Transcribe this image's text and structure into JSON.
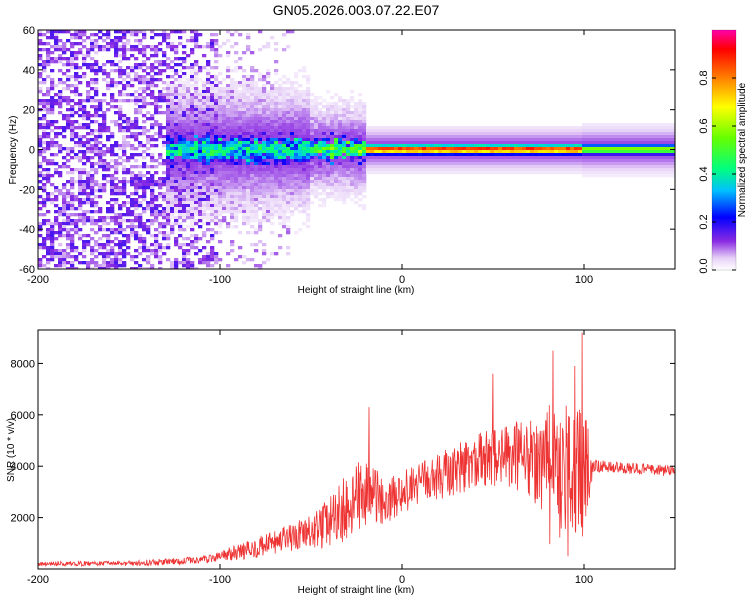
{
  "title": "GN05.2026.003.07.22.E07",
  "chart_data": [
    {
      "type": "heatmap",
      "name": "spectrogram",
      "xlabel": "Height of straight line (km)",
      "ylabel": "Frequency (Hz)",
      "xlim": [
        -200,
        150
      ],
      "ylim": [
        -60,
        60
      ],
      "xticks": [
        -200,
        -100,
        0,
        100
      ],
      "yticks": [
        -60,
        -40,
        -20,
        0,
        20,
        40,
        60
      ],
      "colorbar": {
        "label": "Normalized spectral amplitude",
        "range": [
          0,
          1
        ],
        "ticks": [
          0.0,
          0.2,
          0.4,
          0.6,
          0.8
        ],
        "tick_labels": [
          "0.0",
          "0.2",
          "0.4",
          "0.6",
          "0.8"
        ]
      },
      "description_of_signal": {
        "noise_region_x": [
          -200,
          -100
        ],
        "signal_band_center_hz": 0,
        "signal_start_x": -130,
        "strong_core_start_x": -10
      }
    },
    {
      "type": "line",
      "name": "snr",
      "xlabel": "Height of straight line (km)",
      "ylabel": "SNR (10 * v/v)",
      "xlim": [
        -200,
        150
      ],
      "ylim": [
        0,
        9300
      ],
      "xticks": [
        -200,
        -100,
        0,
        100
      ],
      "yticks": [
        2000,
        4000,
        6000,
        8000
      ],
      "series": [
        {
          "name": "SNR",
          "color": "#ee3333",
          "envelope_x": [
            -200,
            -150,
            -110,
            -90,
            -70,
            -50,
            -40,
            -30,
            -20,
            -10,
            0,
            10,
            20,
            30,
            40,
            50,
            60,
            70,
            80,
            90,
            100,
            105,
            110,
            130,
            150
          ],
          "envelope_mean": [
            200,
            220,
            350,
            650,
            1000,
            1400,
            1800,
            2400,
            3000,
            2600,
            3000,
            3300,
            3600,
            3900,
            4200,
            4300,
            4400,
            4300,
            4200,
            3900,
            3900,
            4000,
            4000,
            3900,
            3800
          ],
          "envelope_spread": [
            80,
            100,
            150,
            300,
            500,
            700,
            1000,
            1400,
            1400,
            900,
            800,
            900,
            900,
            1000,
            1100,
            1200,
            1300,
            1600,
            2200,
            2500,
            2500,
            300,
            220,
            220,
            220
          ],
          "peaks": [
            {
              "x": -18,
              "y": 6300
            },
            {
              "x": 50,
              "y": 7600
            },
            {
              "x": 83,
              "y": 8500
            },
            {
              "x": 99,
              "y": 9200
            },
            {
              "x": 95,
              "y": 7900
            }
          ]
        }
      ]
    }
  ]
}
